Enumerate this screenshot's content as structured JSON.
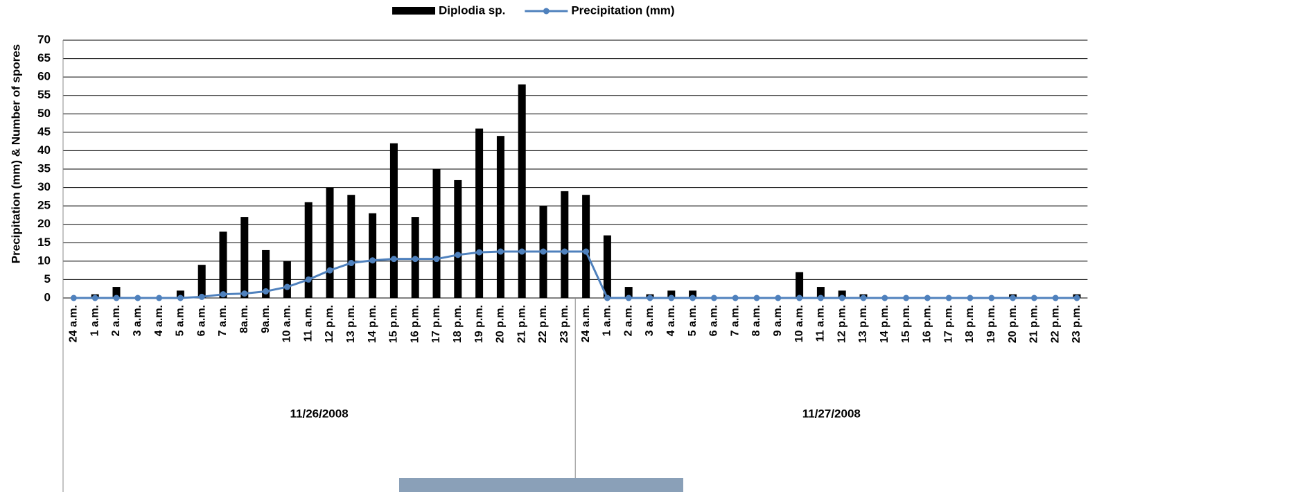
{
  "chart_data": {
    "type": "bar",
    "ylabel": "Precipitation (mm) & Number of spores",
    "categories": [
      "24 a.m.",
      "1 a.m.",
      "2 a.m.",
      "3 a.m.",
      "4 a.m.",
      "5 a.m.",
      "6 a.m.",
      "7 a.m.",
      "8a.m.",
      "9a.m.",
      "10 a.m.",
      "11 a.m.",
      "12 p.m.",
      "13 p.m.",
      "14 p.m.",
      "15 p.m.",
      "16 p.m.",
      "17 p.m.",
      "18 p.m.",
      "19 p.m.",
      "20 p.m.",
      "21 p.m.",
      "22 p.m.",
      "23 p.m.",
      "24 a.m.",
      "1 a.m.",
      "2 a.m.",
      "3 a.m.",
      "4 a.m.",
      "5 a.m.",
      "6 a.m.",
      "7 a.m.",
      "8 a.m.",
      "9 a.m.",
      "10 a.m.",
      "11 a.m.",
      "12 p.m.",
      "13 p.m.",
      "14 p.m.",
      "15 p.m.",
      "16 p.m.",
      "17 p.m.",
      "18 p.m.",
      "19 p.m.",
      "20 p.m.",
      "21 p.m.",
      "22 p.m.",
      "23 p.m."
    ],
    "groups": [
      "11/26/2008",
      "11/27/2008"
    ],
    "series": [
      {
        "name": "Diplodia sp.",
        "type": "bar",
        "color": "#000000",
        "values": [
          0,
          1,
          3,
          0,
          0,
          2,
          9,
          18,
          22,
          13,
          10,
          26,
          30,
          28,
          23,
          42,
          22,
          35,
          32,
          46,
          44,
          58,
          25,
          29,
          28,
          17,
          3,
          1,
          2,
          2,
          0,
          0,
          0,
          0,
          7,
          3,
          2,
          1,
          0,
          0,
          0,
          0,
          0,
          0,
          1,
          0,
          0,
          1
        ]
      },
      {
        "name": "Precipitation (mm)",
        "type": "line",
        "color": "#4f81bd",
        "values": [
          0,
          0,
          0,
          0,
          0,
          0,
          0.3,
          1,
          1.2,
          1.8,
          3,
          5,
          7.5,
          9.5,
          10.2,
          10.6,
          10.6,
          10.6,
          11.7,
          12.4,
          12.6,
          12.6,
          12.6,
          12.6,
          12.6,
          0,
          0,
          0,
          0,
          0,
          0,
          0,
          0,
          0,
          0,
          0,
          0,
          0,
          0,
          0,
          0,
          0,
          0,
          0,
          0,
          0,
          0,
          0
        ]
      }
    ],
    "ylim": [
      0,
      70
    ],
    "yticks": [
      0,
      5,
      10,
      15,
      20,
      25,
      30,
      35,
      40,
      45,
      50,
      55,
      60,
      65,
      70
    ],
    "grid": true
  }
}
